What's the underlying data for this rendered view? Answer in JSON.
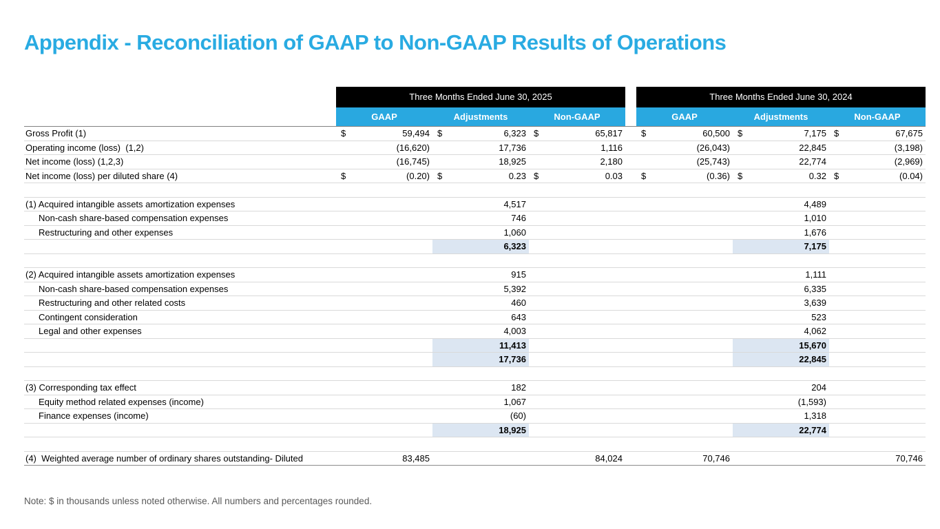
{
  "title": "Appendix - Reconciliation of GAAP to Non-GAAP Results of Operations",
  "note": "Note: $ in thousands unless noted otherwise. All numbers and percentages rounded.",
  "colors": {
    "accent_blue": "#29ABE2",
    "header_blue": "#29A8E0",
    "header_black": "#000000",
    "highlight": "#DCE6F2"
  },
  "table": {
    "groups": [
      {
        "title": "Three Months Ended June 30, 2025",
        "columns": [
          "GAAP",
          "Adjustments",
          "Non-GAAP"
        ]
      },
      {
        "title": "Three Months Ended June 30, 2024",
        "columns": [
          "GAAP",
          "Adjustments",
          "Non-GAAP"
        ]
      }
    ],
    "rows": [
      {
        "label": "Gross Profit (1)",
        "cells": [
          {
            "c": "$",
            "v": "59,494"
          },
          {
            "c": "$",
            "v": "6,323"
          },
          {
            "c": "$",
            "v": "65,817"
          },
          {
            "c": "$",
            "v": "60,500"
          },
          {
            "c": "$",
            "v": "7,175"
          },
          {
            "c": "$",
            "v": "67,675"
          }
        ]
      },
      {
        "label": "Operating income (loss)  (1,2)",
        "cells": [
          {
            "v": "(16,620)"
          },
          {
            "v": "17,736"
          },
          {
            "v": "1,116"
          },
          {
            "v": "(26,043)"
          },
          {
            "v": "22,845"
          },
          {
            "v": "(3,198)"
          }
        ]
      },
      {
        "label": "Net income (loss) (1,2,3)",
        "cells": [
          {
            "v": "(16,745)"
          },
          {
            "v": "18,925"
          },
          {
            "v": "2,180"
          },
          {
            "v": "(25,743)"
          },
          {
            "v": "22,774"
          },
          {
            "v": "(2,969)"
          }
        ]
      },
      {
        "label": "Net income (loss) per diluted share (4)",
        "cells": [
          {
            "c": "$",
            "v": "(0.20)"
          },
          {
            "c": "$",
            "v": "0.23"
          },
          {
            "c": "$",
            "v": "0.03"
          },
          {
            "c": "$",
            "v": "(0.36)"
          },
          {
            "c": "$",
            "v": "0.32"
          },
          {
            "c": "$",
            "v": "(0.04)"
          }
        ]
      },
      {
        "label": "",
        "cells": [
          null,
          null,
          null,
          null,
          null,
          null
        ]
      },
      {
        "label": "(1) Acquired intangible assets amortization expenses",
        "cells": [
          null,
          {
            "v": "4,517"
          },
          null,
          null,
          {
            "v": "4,489"
          },
          null
        ]
      },
      {
        "label": "Non-cash share-based compensation expenses",
        "indent": true,
        "cells": [
          null,
          {
            "v": "746"
          },
          null,
          null,
          {
            "v": "1,010"
          },
          null
        ]
      },
      {
        "label": "Restructuring and other expenses",
        "indent": true,
        "cells": [
          null,
          {
            "v": "1,060"
          },
          null,
          null,
          {
            "v": "1,676"
          },
          null
        ]
      },
      {
        "label": "",
        "cells": [
          null,
          {
            "v": "6,323",
            "hl": true,
            "b": true
          },
          null,
          null,
          {
            "v": "7,175",
            "hl": true,
            "b": true
          },
          null
        ]
      },
      {
        "label": "",
        "cells": [
          null,
          null,
          null,
          null,
          null,
          null
        ]
      },
      {
        "label": "(2) Acquired intangible assets amortization expenses",
        "cells": [
          null,
          {
            "v": "915"
          },
          null,
          null,
          {
            "v": "1,111"
          },
          null
        ]
      },
      {
        "label": "Non-cash share-based compensation expenses",
        "indent": true,
        "cells": [
          null,
          {
            "v": "5,392"
          },
          null,
          null,
          {
            "v": "6,335"
          },
          null
        ]
      },
      {
        "label": "Restructuring and other related costs",
        "indent": true,
        "cells": [
          null,
          {
            "v": "460"
          },
          null,
          null,
          {
            "v": "3,639"
          },
          null
        ]
      },
      {
        "label": "Contingent consideration",
        "indent": true,
        "cells": [
          null,
          {
            "v": "643"
          },
          null,
          null,
          {
            "v": "523"
          },
          null
        ]
      },
      {
        "label": "Legal and other expenses",
        "indent": true,
        "cells": [
          null,
          {
            "v": "4,003"
          },
          null,
          null,
          {
            "v": "4,062"
          },
          null
        ]
      },
      {
        "label": "",
        "cells": [
          null,
          {
            "v": "11,413",
            "hl": true,
            "b": true
          },
          null,
          null,
          {
            "v": "15,670",
            "hl": true,
            "b": true
          },
          null
        ]
      },
      {
        "label": "",
        "cells": [
          null,
          {
            "v": "17,736",
            "hl": true,
            "b": true
          },
          null,
          null,
          {
            "v": "22,845",
            "hl": true,
            "b": true
          },
          null
        ]
      },
      {
        "label": "",
        "cells": [
          null,
          null,
          null,
          null,
          null,
          null
        ]
      },
      {
        "label": "(3) Corresponding tax effect",
        "cells": [
          null,
          {
            "v": "182"
          },
          null,
          null,
          {
            "v": "204"
          },
          null
        ]
      },
      {
        "label": "Equity method related expenses (income)",
        "indent": true,
        "cells": [
          null,
          {
            "v": "1,067"
          },
          null,
          null,
          {
            "v": "(1,593)"
          },
          null
        ]
      },
      {
        "label": "Finance expenses (income)",
        "indent": true,
        "cells": [
          null,
          {
            "v": "(60)"
          },
          null,
          null,
          {
            "v": "1,318"
          },
          null
        ]
      },
      {
        "label": "",
        "cells": [
          null,
          {
            "v": "18,925",
            "hl": true,
            "b": true
          },
          null,
          null,
          {
            "v": "22,774",
            "hl": true,
            "b": true
          },
          null
        ]
      },
      {
        "label": "",
        "cells": [
          null,
          null,
          null,
          null,
          null,
          null
        ]
      },
      {
        "label": "(4)  Weighted average number of ordinary shares outstanding- Diluted",
        "cells": [
          {
            "v": "83,485"
          },
          null,
          {
            "v": "84,024"
          },
          {
            "v": "70,746"
          },
          null,
          {
            "v": "70,746"
          }
        ]
      }
    ]
  }
}
